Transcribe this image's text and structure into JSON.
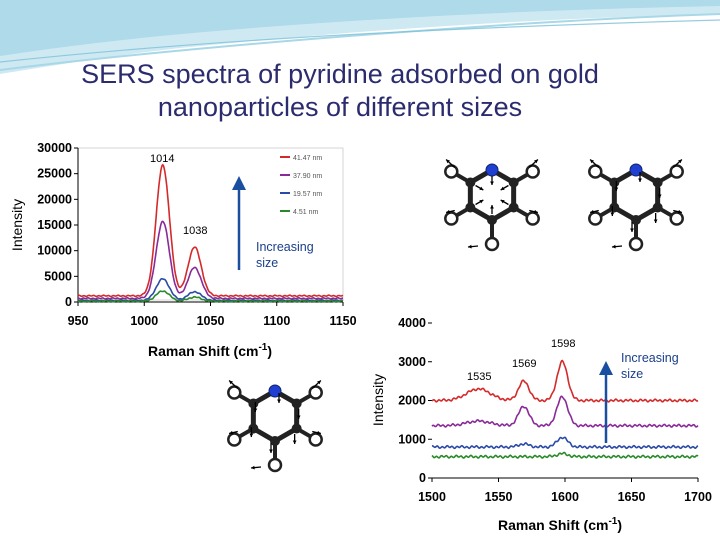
{
  "slide": {
    "title_line1": "SERS spectra of pyridine adsorbed on gold",
    "title_line2": "nanoparticles of different sizes",
    "accent_color": "#1a4fa0",
    "banner_color": "#bfe3ef"
  },
  "chart_data": [
    {
      "type": "line",
      "xlabel": "Raman Shift (cm",
      "xlabel_sup": "-1",
      "xlabel_end": ")",
      "ylabel": "Intensity",
      "xlim": [
        950,
        1150
      ],
      "ylim": [
        0,
        30000
      ],
      "xticks": [
        "950",
        "1000",
        "1050",
        "1100",
        "1150"
      ],
      "yticks": [
        "0",
        "5000",
        "10000",
        "15000",
        "20000",
        "25000",
        "30000"
      ],
      "legend_placement": "top-right",
      "peak_labels": [
        "1014",
        "1038"
      ],
      "arrow_label_line1": "Increasing",
      "arrow_label_line2": "size",
      "series": [
        {
          "name": "41.47 nm",
          "color": "#d42a2a",
          "base": 1200,
          "peaks": [
            [
              1014,
              25500,
              5
            ],
            [
              1038,
              9500,
              5
            ]
          ]
        },
        {
          "name": "37.90 nm",
          "color": "#8a2a9a",
          "base": 700,
          "peaks": [
            [
              1014,
              15000,
              5
            ],
            [
              1038,
              6000,
              5
            ]
          ]
        },
        {
          "name": "19.57 nm",
          "color": "#2a4aa8",
          "base": 300,
          "peaks": [
            [
              1014,
              4200,
              5
            ],
            [
              1038,
              1700,
              5
            ]
          ]
        },
        {
          "name": "4.51 nm",
          "color": "#2a8a2a",
          "base": 150,
          "peaks": [
            [
              1014,
              2000,
              5
            ],
            [
              1038,
              800,
              5
            ]
          ]
        }
      ]
    },
    {
      "type": "line",
      "xlabel": "Raman Shift (cm",
      "xlabel_sup": "-1",
      "xlabel_end": ")",
      "ylabel": "Intensity",
      "xlim": [
        1500,
        1700
      ],
      "ylim": [
        0,
        4000
      ],
      "xticks": [
        "1500",
        "1550",
        "1600",
        "1650",
        "1700"
      ],
      "yticks": [
        "0",
        "1000",
        "2000",
        "3000",
        "4000"
      ],
      "peak_labels": [
        "1535",
        "1569",
        "1598"
      ],
      "arrow_label_line1": "Increasing",
      "arrow_label_line2": "size",
      "series": [
        {
          "color": "#d42a2a",
          "base": 2000,
          "peaks": [
            [
              1535,
              300,
              9
            ],
            [
              1569,
              500,
              4
            ],
            [
              1598,
              1000,
              4
            ]
          ]
        },
        {
          "color": "#8a2a9a",
          "base": 1350,
          "peaks": [
            [
              1535,
              120,
              9
            ],
            [
              1569,
              500,
              4
            ],
            [
              1598,
              750,
              4
            ]
          ]
        },
        {
          "color": "#2a4aa8",
          "base": 800,
          "peaks": [
            [
              1569,
              80,
              4
            ],
            [
              1598,
              250,
              4
            ]
          ]
        },
        {
          "color": "#2a8a2a",
          "base": 550,
          "peaks": [
            [
              1598,
              80,
              4
            ]
          ]
        }
      ]
    }
  ],
  "molecules": [
    {
      "name": "pyridine-mode-1"
    },
    {
      "name": "pyridine-mode-2"
    },
    {
      "name": "pyridine-mode-3"
    }
  ]
}
